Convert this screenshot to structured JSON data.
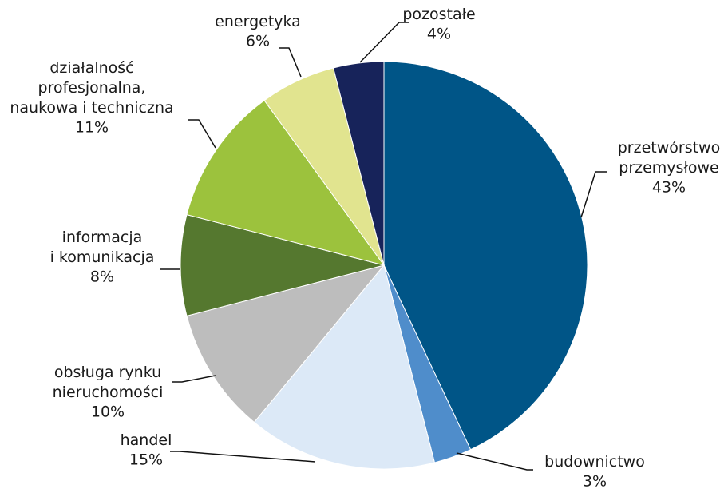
{
  "chart_data": {
    "type": "pie",
    "categories": [
      "przetwórstwo\nprzemysłowe",
      "budownictwo",
      "handel",
      "obsługa rynku\nnieruchomości",
      "informacja\ni komunikacja",
      "działalność\nprofesjonalna,\nnaukowa i techniczna",
      "energetyka",
      "pozostałe"
    ],
    "values": [
      43,
      3,
      15,
      10,
      8,
      11,
      6,
      4
    ],
    "value_labels": [
      "43%",
      "3%",
      "15%",
      "10%",
      "8%",
      "11%",
      "6%",
      "4%"
    ],
    "colors": [
      "#005587",
      "#4f8dcb",
      "#dce9f7",
      "#bdbdbd",
      "#55782f",
      "#9cc23d",
      "#e1e48f",
      "#17235a"
    ]
  }
}
